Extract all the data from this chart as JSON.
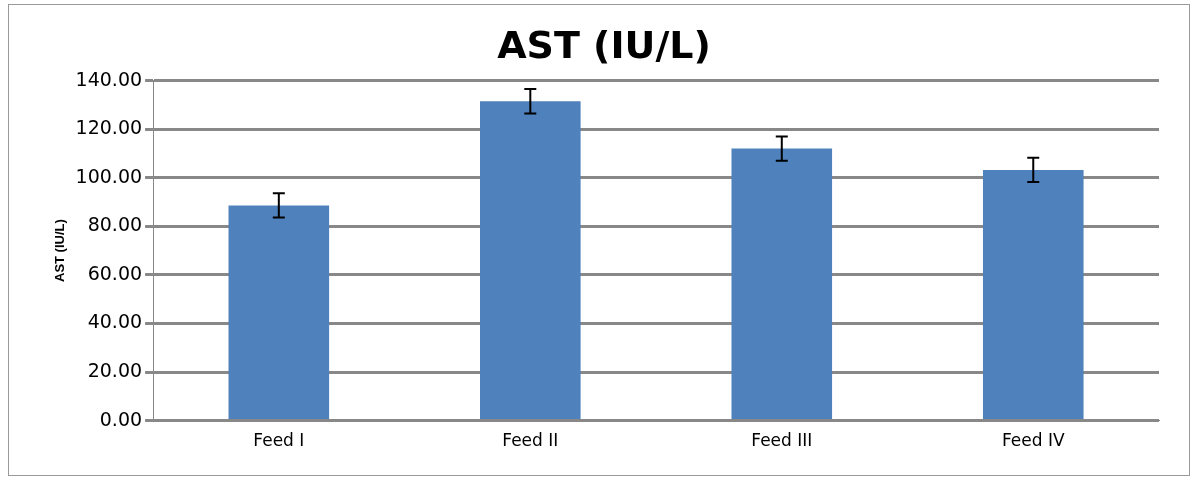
{
  "chart_data": {
    "type": "bar",
    "title": "AST (IU/L)",
    "ylabel": "AST (IU/L)",
    "categories": [
      "Feed I",
      "Feed II",
      "Feed III",
      "Feed IV"
    ],
    "values": [
      88.6,
      131.5,
      112,
      103.2
    ],
    "errors": [
      5,
      5,
      5,
      5
    ],
    "color": "#4f81bd",
    "ylim": [
      0,
      140
    ],
    "yticks": [
      {
        "value": 0,
        "label": "0.00"
      },
      {
        "value": 20,
        "label": "20.00"
      },
      {
        "value": 40,
        "label": "40.00"
      },
      {
        "value": 60,
        "label": "60.00"
      },
      {
        "value": 80,
        "label": "80.00"
      },
      {
        "value": 100,
        "label": "100.00"
      },
      {
        "value": 120,
        "label": "120.00"
      },
      {
        "value": 140,
        "label": "140.00"
      }
    ],
    "grid": "y",
    "legend": false
  }
}
